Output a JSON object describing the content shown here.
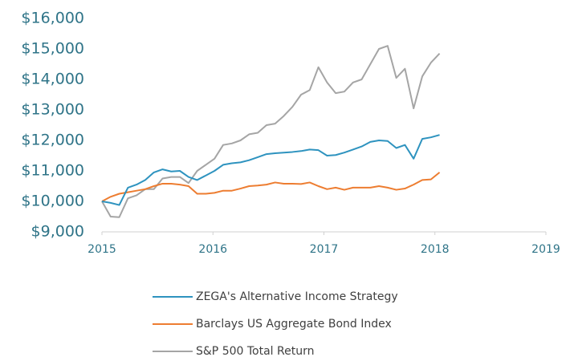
{
  "chart_data": {
    "type": "line",
    "x": [
      2015,
      2015.078,
      2015.156,
      2015.234,
      2015.312,
      2015.39,
      2015.468,
      2015.546,
      2015.624,
      2015.702,
      2015.78,
      2015.858,
      2015.936,
      2016.014,
      2016.092,
      2016.17,
      2016.248,
      2016.326,
      2016.404,
      2016.482,
      2016.56,
      2016.638,
      2016.716,
      2016.794,
      2016.872,
      2016.95,
      2017.028,
      2017.106,
      2017.184,
      2017.262,
      2017.34,
      2017.418,
      2017.496,
      2017.574,
      2017.652,
      2017.73,
      2017.808,
      2017.886,
      2017.964,
      2018.042
    ],
    "series": [
      {
        "name": "ZEGA's Alternative Income Strategy",
        "color": "#2e93bf",
        "values": [
          10000,
          9950,
          9880,
          10450,
          10550,
          10700,
          10950,
          11050,
          10980,
          11000,
          10800,
          10700,
          10850,
          11000,
          11200,
          11250,
          11280,
          11350,
          11450,
          11550,
          11580,
          11600,
          11620,
          11650,
          11700,
          11680,
          11500,
          11520,
          11600,
          11700,
          11800,
          11950,
          12000,
          11980,
          11750,
          11850,
          11400,
          12050,
          12100,
          12180
        ]
      },
      {
        "name": "Barclays US Aggregate Bond Index",
        "color": "#ed7d31",
        "values": [
          10000,
          10150,
          10250,
          10300,
          10350,
          10400,
          10500,
          10580,
          10580,
          10550,
          10500,
          10250,
          10250,
          10280,
          10350,
          10350,
          10420,
          10500,
          10520,
          10550,
          10620,
          10580,
          10580,
          10570,
          10620,
          10500,
          10400,
          10450,
          10380,
          10450,
          10450,
          10450,
          10500,
          10450,
          10380,
          10420,
          10550,
          10700,
          10720,
          10950
        ]
      },
      {
        "name": "S&P 500 Total Return",
        "color": "#a5a5a5",
        "values": [
          10000,
          9500,
          9480,
          10100,
          10200,
          10400,
          10400,
          10750,
          10800,
          10800,
          10600,
          11000,
          11200,
          11400,
          11850,
          11900,
          12000,
          12200,
          12250,
          12500,
          12550,
          12800,
          13100,
          13500,
          13650,
          14400,
          13900,
          13550,
          13600,
          13900,
          14000,
          14500,
          15000,
          15100,
          14050,
          14350,
          13050,
          14100,
          14550,
          14850
        ]
      }
    ],
    "xlim": [
      2015,
      2019
    ],
    "xticks": [
      2015,
      2016,
      2017,
      2018,
      2019
    ],
    "ylim": [
      9000,
      16000
    ],
    "yticks": [
      {
        "value": 9000,
        "label": "$9,000"
      },
      {
        "value": 10000,
        "label": "$10,000"
      },
      {
        "value": 11000,
        "label": "$11,000"
      },
      {
        "value": 12000,
        "label": "$12,000"
      },
      {
        "value": 13000,
        "label": "$13,000"
      },
      {
        "value": 14000,
        "label": "$14,000"
      },
      {
        "value": 15000,
        "label": "$15,000"
      },
      {
        "value": 16000,
        "label": "$16,000"
      }
    ],
    "grid": false,
    "legend": "bottom"
  }
}
